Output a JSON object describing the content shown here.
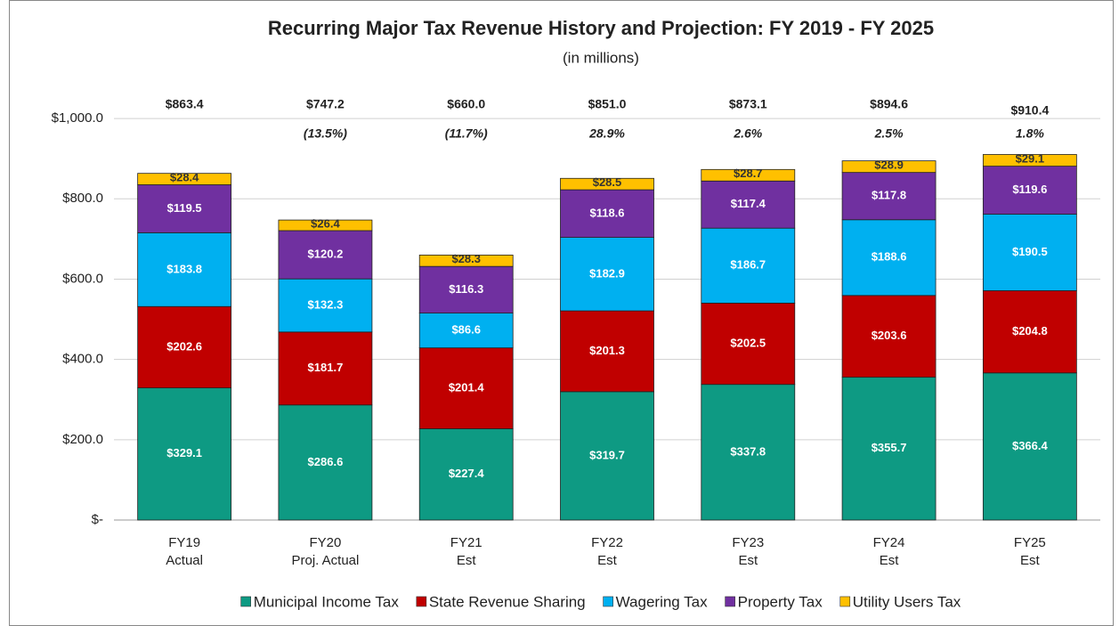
{
  "chart_data": {
    "type": "stacked_bar",
    "title": "Recurring Major Tax Revenue History and Projection: FY 2019 - FY 2025",
    "subtitle": "(in millions)",
    "categories": [
      [
        "FY19",
        "Actual"
      ],
      [
        "FY20",
        "Proj. Actual"
      ],
      [
        "FY21",
        "Est"
      ],
      [
        "FY22",
        "Est"
      ],
      [
        "FY23",
        "Est"
      ],
      [
        "FY24",
        "Est"
      ],
      [
        "FY25",
        "Est"
      ]
    ],
    "series": [
      {
        "name": "Municipal Income Tax",
        "color": "#0e9a83",
        "values": [
          329.1,
          286.6,
          227.4,
          319.7,
          337.8,
          355.7,
          366.4
        ],
        "value_labels": [
          "$329.1",
          "$286.6",
          "$227.4",
          "$319.7",
          "$337.8",
          "$355.7",
          "$366.4"
        ]
      },
      {
        "name": "State Revenue Sharing",
        "color": "#c00000",
        "values": [
          202.6,
          181.7,
          201.4,
          201.3,
          202.5,
          203.6,
          204.8
        ],
        "value_labels": [
          "$202.6",
          "$181.7",
          "$201.4",
          "$201.3",
          "$202.5",
          "$203.6",
          "$204.8"
        ]
      },
      {
        "name": "Wagering Tax",
        "color": "#00b0f0",
        "values": [
          183.8,
          132.3,
          86.6,
          182.9,
          186.7,
          188.6,
          190.5
        ],
        "value_labels": [
          "$183.8",
          "$132.3",
          "$86.6",
          "$182.9",
          "$186.7",
          "$188.6",
          "$190.5"
        ]
      },
      {
        "name": "Property Tax",
        "color": "#7030a0",
        "values": [
          119.5,
          120.2,
          116.3,
          118.6,
          117.4,
          117.8,
          119.6
        ],
        "value_labels": [
          "$119.5",
          "$120.2",
          "$116.3",
          "$118.6",
          "$117.4",
          "$117.8",
          "$119.6"
        ]
      },
      {
        "name": "Utility Users Tax",
        "color": "#ffc000",
        "values": [
          28.4,
          26.4,
          28.3,
          28.5,
          28.7,
          28.9,
          29.1
        ],
        "value_labels": [
          "$28.4",
          "$26.4",
          "$28.3",
          "$28.5",
          "$28.7",
          "$28.9",
          "$29.1"
        ]
      }
    ],
    "totals": {
      "values": [
        863.4,
        747.2,
        660.0,
        851.0,
        873.1,
        894.6,
        910.4
      ],
      "value_labels": [
        "$863.4",
        "$747.2",
        "$660.0",
        "$851.0",
        "$873.1",
        "$894.6",
        "$910.4"
      ]
    },
    "changes": {
      "values": [
        null,
        -13.5,
        -11.7,
        28.9,
        2.6,
        2.5,
        1.8
      ],
      "value_labels": [
        null,
        "(13.5%)",
        "(11.7%)",
        "28.9%",
        "2.6%",
        "2.5%",
        "1.8%"
      ]
    },
    "ylim": [
      0,
      1100
    ],
    "yticks": [
      {
        "value": 0,
        "label": "$-"
      },
      {
        "value": 200,
        "label": "$200.0"
      },
      {
        "value": 400,
        "label": "$400.0"
      },
      {
        "value": 600,
        "label": "$600.0"
      },
      {
        "value": 800,
        "label": "$800.0"
      },
      {
        "value": 1000,
        "label": "$1,000.0"
      }
    ],
    "grid": true,
    "legend": "bottom"
  }
}
